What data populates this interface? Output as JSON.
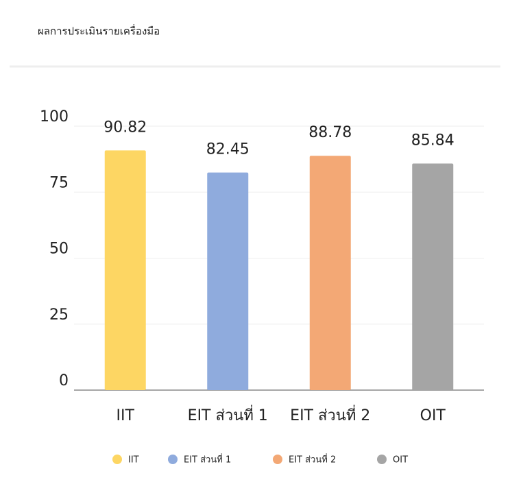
{
  "chart_data": {
    "type": "bar",
    "title": "ผลการประเมินรายเครื่องมือ",
    "categories": [
      "IIT",
      "EIT ส่วนที่ 1",
      "EIT ส่วนที่ 2",
      "OIT"
    ],
    "values": [
      90.82,
      82.45,
      88.78,
      85.84
    ],
    "colors": [
      "#fdd663",
      "#8fabdd",
      "#f3a875",
      "#a5a5a5"
    ],
    "ylim": [
      0,
      100
    ],
    "yticks": [
      0,
      25,
      50,
      75,
      100
    ],
    "grid": true,
    "legend": "bottom"
  }
}
